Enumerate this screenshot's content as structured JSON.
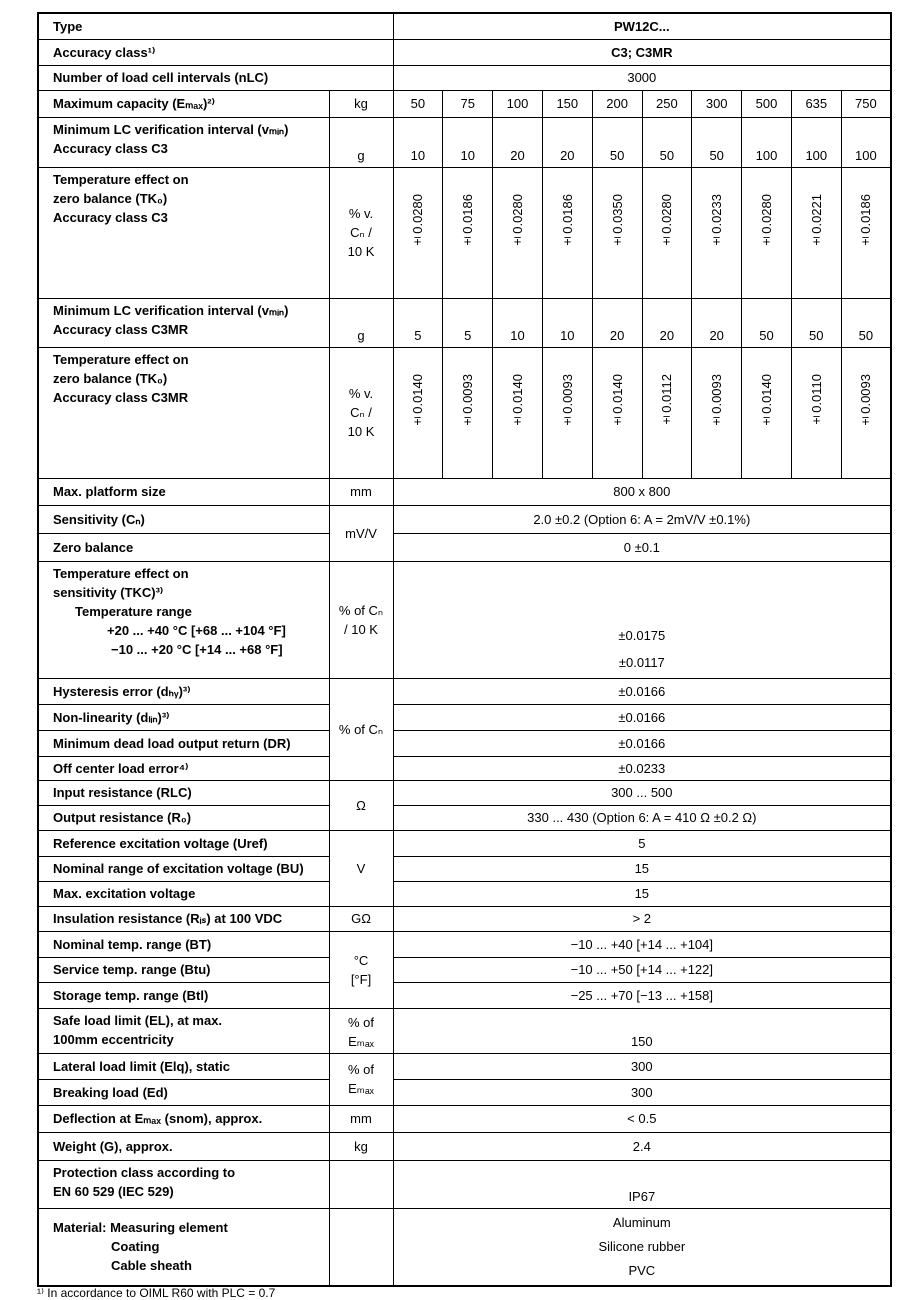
{
  "rows": [
    {
      "label": [
        "Type"
      ],
      "value": [
        "PW12C..."
      ]
    },
    {
      "label": [
        "Accuracy class¹⁾"
      ],
      "value": [
        "C3; C3MR"
      ]
    },
    {
      "label": [
        "Number of load cell intervals (nLC)"
      ],
      "value": [
        "3000"
      ]
    },
    {
      "label": [
        "Maximum capacity (Eₘₐₓ)²⁾"
      ],
      "unit": [
        "kg"
      ],
      "values": [
        "50",
        "75",
        "100",
        "150",
        "200",
        "250",
        "300",
        "500",
        "635",
        "750"
      ]
    },
    {
      "label": [
        "Minimum LC verification interval (vₘᵢₙ)",
        "Accuracy class C3"
      ],
      "unit": [
        "g"
      ],
      "values": [
        "10",
        "10",
        "20",
        "20",
        "50",
        "50",
        "50",
        "100",
        "100",
        "100"
      ]
    },
    {
      "label": [
        "Temperature effect on",
        "zero balance (TK₀)",
        "Accuracy class C3"
      ],
      "unit": [
        "% v.",
        "Cₙ /",
        "10 K"
      ],
      "values": [
        "±0.0280",
        "±0.0186",
        "±0.0280",
        "±0.0186",
        "±0.0350",
        "±0.0280",
        "±0.0233",
        "±0.0280",
        "±0.0221",
        "±0.0186"
      ]
    },
    {
      "label": [
        "Minimum LC verification interval (vₘᵢₙ)",
        "Accuracy class C3MR"
      ],
      "unit": [
        "g"
      ],
      "values": [
        "5",
        "5",
        "10",
        "10",
        "20",
        "20",
        "20",
        "50",
        "50",
        "50"
      ]
    },
    {
      "label": [
        "Temperature effect on",
        "zero balance (TK₀)",
        "Accuracy class C3MR"
      ],
      "unit": [
        "% v.",
        "Cₙ /",
        "10 K"
      ],
      "values": [
        "±0.0140",
        "±0.0093",
        "±0.0140",
        "±0.0093",
        "±0.0140",
        "±0.0112",
        "±0.0093",
        "±0.0140",
        "±0.0110",
        "±0.0093"
      ]
    },
    {
      "label": [
        "Max. platform size"
      ],
      "unit": [
        "mm"
      ],
      "value": [
        "800 x 800"
      ]
    },
    {
      "label": [
        "Sensitivity (Cₙ)"
      ],
      "unit": [
        "mV/V"
      ],
      "value": [
        "2.0 ±0.2 (Option 6: A = 2mV/V ±0.1%)"
      ]
    },
    {
      "label": [
        "Zero balance"
      ],
      "value": [
        "0 ±0.1"
      ]
    },
    {
      "label": [
        "Temperature effect on",
        "sensitivity (TKC)³⁾",
        "Temperature range",
        "+20 ... +40 °C [+68 ... +104 °F]",
        "−10 ... +20 °C [+14 ... +68 °F]"
      ],
      "unit": [
        "% of Cₙ",
        "/ 10 K"
      ],
      "value": [
        "±0.0175",
        "±0.0117"
      ]
    },
    {
      "label": [
        "Hysteresis error (dₕᵧ)³⁾"
      ],
      "unit": [
        "% of Cₙ"
      ],
      "value": [
        "±0.0166"
      ]
    },
    {
      "label": [
        "Non-linearity (dₗᵢₙ)³⁾"
      ],
      "value": [
        "±0.0166"
      ]
    },
    {
      "label": [
        "Minimum dead load output return (DR)"
      ],
      "value": [
        "±0.0166"
      ]
    },
    {
      "label": [
        "Off center load error⁴⁾"
      ],
      "value": [
        "±0.0233"
      ]
    },
    {
      "label": [
        "Input resistance (RLC)"
      ],
      "unit": [
        "Ω"
      ],
      "value": [
        "300 ... 500"
      ]
    },
    {
      "label": [
        "Output resistance (R₀)"
      ],
      "value": [
        "330 ... 430 (Option 6: A = 410 Ω ±0.2 Ω)"
      ]
    },
    {
      "label": [
        "Reference excitation voltage (Uref)"
      ],
      "unit": [
        "V"
      ],
      "value": [
        "5"
      ]
    },
    {
      "label": [
        "Nominal range of excitation voltage (BU)"
      ],
      "value": [
        "15"
      ]
    },
    {
      "label": [
        "Max. excitation voltage"
      ],
      "value": [
        "15"
      ]
    },
    {
      "label": [
        "Insulation resistance (Rᵢₛ) at 100 VDC"
      ],
      "unit": [
        "GΩ"
      ],
      "value": [
        "> 2"
      ]
    },
    {
      "label": [
        "Nominal temp. range (BT)"
      ],
      "unit": [
        "°C",
        "[°F]"
      ],
      "value": [
        "−10 ... +40 [+14 ... +104]"
      ]
    },
    {
      "label": [
        "Service temp. range (Btu)"
      ],
      "value": [
        "−10 ... +50 [+14 ... +122]"
      ]
    },
    {
      "label": [
        "Storage temp. range (Btl)"
      ],
      "value": [
        "−25 ... +70 [−13 ... +158]"
      ]
    },
    {
      "label": [
        "Safe load limit (EL), at max.",
        "100mm eccentricity"
      ],
      "unit": [
        "% of",
        "Eₘₐₓ"
      ],
      "value": [
        "150"
      ]
    },
    {
      "label": [
        "Lateral load limit (Elq), static"
      ],
      "unit": [
        "% of",
        "Eₘₐₓ"
      ],
      "value": [
        "300"
      ]
    },
    {
      "label": [
        "Breaking load (Ed)"
      ],
      "value": [
        "300"
      ]
    },
    {
      "label": [
        "Deflection at Eₘₐₓ (snom), approx."
      ],
      "unit": [
        "mm"
      ],
      "value": [
        "< 0.5"
      ]
    },
    {
      "label": [
        "Weight (G), approx."
      ],
      "unit": [
        "kg"
      ],
      "value": [
        "2.4"
      ]
    },
    {
      "label": [
        "Protection class according to",
        "EN 60 529 (IEC 529)"
      ],
      "value": [
        "IP67"
      ]
    },
    {
      "label": [
        "Material: Measuring element",
        "Coating",
        "Cable sheath"
      ],
      "value": [
        "Aluminum",
        "Silicone rubber",
        "PVC"
      ]
    }
  ],
  "footnote": "¹⁾ In accordance to OIML R60 with PLC = 0.7"
}
